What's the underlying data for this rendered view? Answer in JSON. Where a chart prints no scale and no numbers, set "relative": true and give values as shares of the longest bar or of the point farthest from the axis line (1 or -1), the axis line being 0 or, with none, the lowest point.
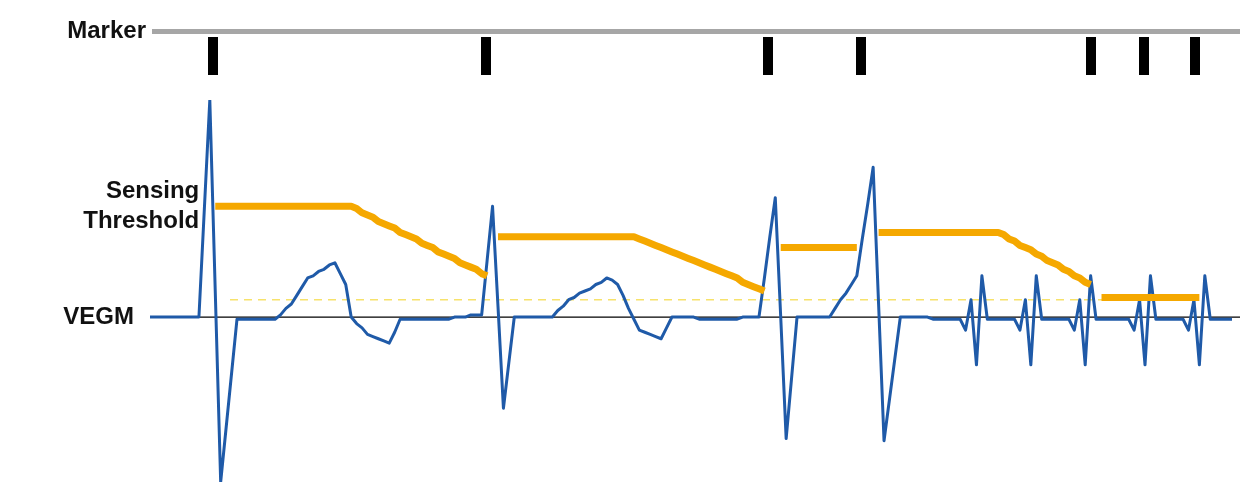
{
  "chart_data": {
    "type": "line",
    "relative": true,
    "legend": false,
    "marker": "none",
    "line_style": "solid",
    "annotations": [
      "Marker"
    ],
    "categories": [
      null,
      null,
      null,
      null,
      null,
      null,
      null,
      null,
      null,
      null,
      null,
      null,
      null,
      null,
      null,
      null,
      null,
      null,
      null,
      null,
      null,
      null,
      null,
      null,
      null,
      null,
      null,
      null,
      null,
      null,
      null,
      null,
      null,
      null,
      null,
      null,
      null,
      null,
      null,
      null,
      null,
      null,
      null,
      null,
      null,
      null,
      null,
      null,
      null,
      null,
      null,
      null,
      null,
      null,
      null,
      null,
      null,
      null,
      null,
      null,
      null,
      null,
      null,
      null,
      null,
      null,
      null,
      null,
      null,
      null,
      null,
      null,
      null,
      null,
      null,
      null,
      null,
      null,
      null,
      null,
      null,
      null,
      null,
      null,
      null,
      null,
      null,
      null,
      null,
      null,
      null,
      null,
      null,
      null,
      null,
      null,
      null,
      null,
      null,
      null,
      null,
      null,
      null,
      null,
      null,
      null,
      null,
      null,
      null,
      null,
      null,
      null,
      null,
      null,
      null,
      null,
      null,
      null,
      null,
      null,
      null,
      null,
      null,
      null,
      null,
      null,
      null,
      null,
      null,
      null,
      null,
      null,
      null,
      null,
      null,
      null,
      null,
      null,
      null,
      null,
      null,
      null,
      null,
      null,
      null,
      null,
      null,
      null,
      null,
      null,
      null,
      null,
      null,
      null,
      null,
      null,
      null,
      null,
      null,
      null,
      null,
      null,
      null,
      null,
      null,
      null,
      null,
      null,
      null,
      null,
      null,
      null,
      null,
      null,
      null,
      null,
      null,
      null,
      null,
      null,
      null,
      null,
      null,
      null,
      null,
      null,
      null,
      null,
      null,
      null,
      null,
      null,
      null,
      null,
      null,
      null,
      null,
      null,
      null,
      null
    ],
    "ref_lines": [
      {
        "axis": "y",
        "value": 0.08,
        "color": "#f7e26b",
        "line_style": "dashed"
      }
    ],
    "series": [
      {
        "name": "Sensing Threshold",
        "color": "#f5a800",
        "values": [
          null,
          null,
          null,
          null,
          null,
          null,
          null,
          null,
          null,
          null,
          null,
          null,
          0.51,
          0.51,
          0.51,
          0.51,
          0.51,
          0.51,
          0.51,
          0.51,
          0.51,
          0.51,
          0.51,
          0.51,
          0.51,
          0.51,
          0.51,
          0.51,
          0.51,
          0.51,
          0.51,
          0.51,
          0.51,
          0.51,
          0.51,
          0.51,
          0.51,
          0.51,
          0.5,
          0.48,
          0.47,
          0.46,
          0.44,
          0.43,
          0.42,
          0.41,
          0.39,
          0.38,
          0.37,
          0.36,
          0.34,
          0.33,
          0.32,
          0.3,
          0.29,
          0.28,
          0.27,
          0.25,
          0.24,
          0.23,
          0.22,
          0.2,
          0.19,
          null,
          0.37,
          0.37,
          0.37,
          0.37,
          0.37,
          0.37,
          0.37,
          0.37,
          0.37,
          0.37,
          0.37,
          0.37,
          0.37,
          0.37,
          0.37,
          0.37,
          0.37,
          0.37,
          0.37,
          0.37,
          0.37,
          0.37,
          0.37,
          0.37,
          0.37,
          0.37,
          0.36,
          0.35,
          0.34,
          0.33,
          0.32,
          0.31,
          0.3,
          0.29,
          0.28,
          0.27,
          0.26,
          0.25,
          0.24,
          0.23,
          0.22,
          0.21,
          0.2,
          0.19,
          0.18,
          0.16,
          0.15,
          0.14,
          0.13,
          0.12,
          null,
          null,
          0.32,
          0.32,
          0.32,
          0.32,
          0.32,
          0.32,
          0.32,
          0.32,
          0.32,
          0.32,
          0.32,
          0.32,
          0.32,
          0.32,
          0.32,
          null,
          null,
          null,
          0.39,
          0.39,
          0.39,
          0.39,
          0.39,
          0.39,
          0.39,
          0.39,
          0.39,
          0.39,
          0.39,
          0.39,
          0.39,
          0.39,
          0.39,
          0.39,
          0.39,
          0.39,
          0.39,
          0.39,
          0.39,
          0.39,
          0.39,
          0.38,
          0.36,
          0.35,
          0.33,
          0.32,
          0.31,
          0.29,
          0.28,
          0.26,
          0.25,
          0.24,
          0.22,
          0.21,
          0.19,
          0.18,
          0.16,
          0.15,
          null,
          0.09,
          0.09,
          0.09,
          0.09,
          0.09,
          0.09,
          0.09,
          0.09,
          0.09,
          0.09,
          0.09,
          0.09,
          0.09,
          0.09,
          0.09,
          0.09,
          0.09,
          0.09,
          0.09,
          null,
          null,
          null,
          null,
          null,
          null
        ]
      },
      {
        "name": "VEGM",
        "color": "#1f5aa8",
        "values": [
          0,
          0,
          0,
          0,
          0,
          0,
          0,
          0,
          0,
          0,
          0.5,
          1,
          0.12,
          -0.76,
          -0.51,
          -0.26,
          -0.01,
          -0.01,
          -0.01,
          -0.01,
          -0.01,
          -0.01,
          -0.01,
          -0.01,
          0.01,
          0.04,
          0.06,
          0.1,
          0.14,
          0.18,
          0.19,
          0.21,
          0.22,
          0.24,
          0.25,
          0.2,
          0.15,
          0,
          -0.03,
          -0.05,
          -0.08,
          -0.09,
          -0.1,
          -0.11,
          -0.12,
          -0.07,
          -0.01,
          -0.01,
          -0.01,
          -0.01,
          -0.01,
          -0.01,
          -0.01,
          -0.01,
          -0.01,
          -0.01,
          0,
          0,
          0,
          0.01,
          0.01,
          0.01,
          0.26,
          0.51,
          0.05,
          -0.42,
          -0.21,
          0,
          0,
          0,
          0,
          0,
          0,
          0,
          0,
          0.03,
          0.05,
          0.08,
          0.09,
          0.11,
          0.12,
          0.13,
          0.15,
          0.16,
          0.18,
          0.17,
          0.15,
          0.1,
          0.04,
          -0.01,
          -0.06,
          -0.07,
          -0.08,
          -0.09,
          -0.1,
          -0.05,
          0,
          0,
          0,
          0,
          0,
          -0.01,
          -0.01,
          -0.01,
          -0.01,
          -0.01,
          -0.01,
          -0.01,
          -0.01,
          0,
          0,
          0,
          0,
          0.18,
          0.37,
          0.55,
          0,
          -0.56,
          -0.28,
          0,
          0,
          0,
          0,
          0,
          0,
          0,
          0.04,
          0.08,
          0.11,
          0.15,
          0.19,
          0.36,
          0.52,
          0.69,
          0.06,
          -0.57,
          -0.38,
          -0.19,
          0,
          0,
          0,
          0,
          0,
          0,
          -0.01,
          -0.01,
          -0.01,
          -0.01,
          -0.01,
          -0.01,
          -0.06,
          0.08,
          -0.22,
          0.19,
          -0.01,
          -0.01,
          -0.01,
          -0.01,
          -0.01,
          -0.01,
          -0.06,
          0.08,
          -0.22,
          0.19,
          -0.01,
          -0.01,
          -0.01,
          -0.01,
          -0.01,
          -0.01,
          -0.06,
          0.08,
          -0.22,
          0.19,
          -0.01,
          -0.01,
          -0.01,
          -0.01,
          -0.01,
          -0.01,
          -0.01,
          -0.06,
          0.08,
          -0.22,
          0.19,
          -0.01,
          -0.01,
          -0.01,
          -0.01,
          -0.01,
          -0.01,
          -0.06,
          0.08,
          -0.22,
          0.19,
          -0.01,
          -0.01,
          -0.01,
          -0.01,
          -0.01
        ]
      }
    ]
  }
}
